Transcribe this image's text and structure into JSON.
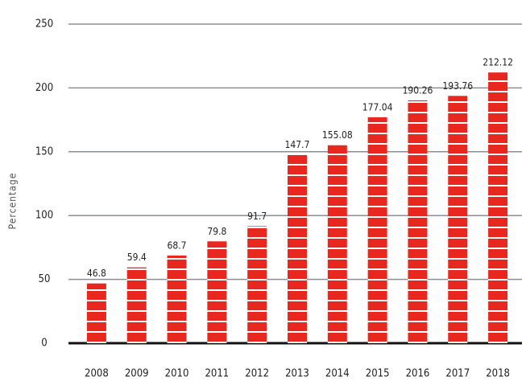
{
  "chart_data": {
    "type": "bar",
    "ylabel": "Percentage",
    "categories": [
      "2008",
      "2009",
      "2010",
      "2011",
      "2012",
      "2013",
      "2014",
      "2015",
      "2016",
      "2017",
      "2018"
    ],
    "values": [
      46.8,
      59.4,
      68.7,
      79.8,
      91.7,
      147.7,
      155.08,
      177.04,
      190.26,
      193.76,
      212.12
    ],
    "color": "#e8281e",
    "ylim": [
      0,
      250
    ],
    "yticks": [
      0,
      50,
      100,
      150,
      200,
      250
    ],
    "grid": true
  }
}
